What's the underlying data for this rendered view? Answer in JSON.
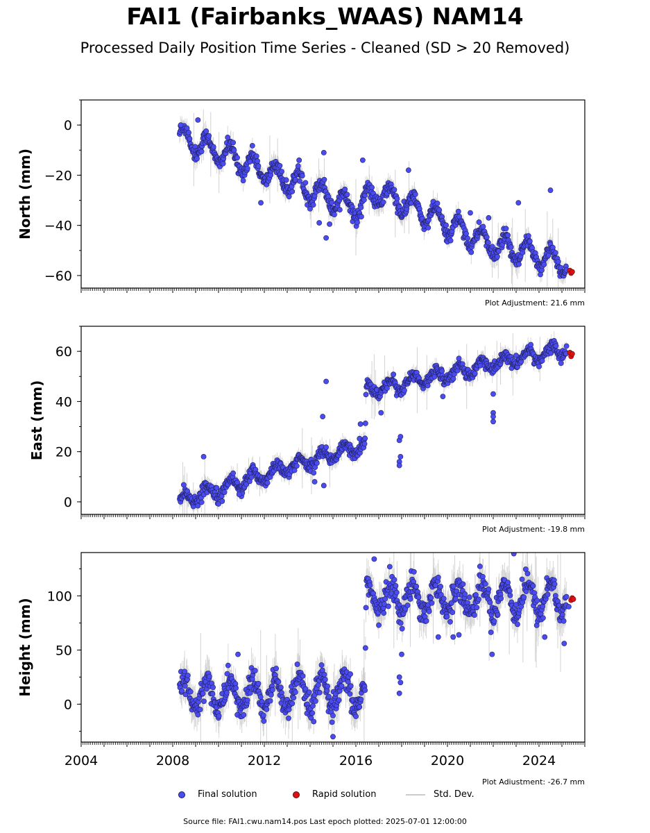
{
  "title": "FAI1 (Fairbanks_WAAS) NAM14",
  "subtitle": "Processed Daily Position Time Series - Cleaned (SD > 20 Removed)",
  "legend": {
    "final": "Final solution",
    "rapid": "Rapid solution",
    "std": "Std. Dev."
  },
  "source_note": "Source file: FAI1.cwu.nam14.pos  Last epoch plotted: 2025-07-01 12:00:00",
  "colors": {
    "final_fill": "#4b4bf2",
    "final_edge": "#20205a",
    "rapid_fill": "#e01010",
    "stddev": "#c8c8c8"
  },
  "chart_data": [
    {
      "type": "scatter",
      "ylabel": "North (mm)",
      "plot_adjustment": "Plot Adjustment: 21.6 mm",
      "xlim": [
        2004.0,
        2026.0
      ],
      "ylim": [
        -65,
        10
      ],
      "yticks": [
        0,
        -20,
        -40,
        -60
      ],
      "yticklabels": [
        "0",
        "−20",
        "−40",
        "−60"
      ],
      "show_xticklabels": false,
      "trend": [
        [
          2008.3,
          -4.5
        ],
        [
          2016.0,
          -33.0
        ],
        [
          2017.0,
          -27.0
        ],
        [
          2018.5,
          -33.0
        ],
        [
          2022.0,
          -48.0
        ],
        [
          2025.2,
          -55.0
        ]
      ],
      "seasonal_amplitude": 4.5,
      "noise": 1.4,
      "outliers": [
        [
          2008.35,
          0
        ],
        [
          2009.1,
          2
        ],
        [
          2011.85,
          -31
        ],
        [
          2013.8,
          -23
        ],
        [
          2014.6,
          -11
        ],
        [
          2014.7,
          -45
        ],
        [
          2014.4,
          -39
        ],
        [
          2014.85,
          -39.5
        ],
        [
          2016.3,
          -14
        ],
        [
          2018.3,
          -18
        ],
        [
          2021.0,
          -35
        ],
        [
          2021.8,
          -37
        ],
        [
          2023.1,
          -31
        ],
        [
          2024.5,
          -26
        ]
      ],
      "rapid": [
        [
          2025.35,
          -58
        ],
        [
          2025.4,
          -59
        ],
        [
          2025.45,
          -58.5
        ]
      ]
    },
    {
      "type": "scatter",
      "ylabel": "East (mm)",
      "plot_adjustment": "Plot Adjustment: -19.8 mm",
      "xlim": [
        2004.0,
        2026.0
      ],
      "ylim": [
        -5,
        70
      ],
      "yticks": [
        0,
        20,
        40,
        60
      ],
      "yticklabels": [
        "0",
        "20",
        "40",
        "60"
      ],
      "show_xticklabels": false,
      "trend": [
        [
          2008.3,
          0.5
        ],
        [
          2016.4,
          23.0
        ],
        [
          2016.45,
          44.0
        ],
        [
          2022.0,
          55.0
        ],
        [
          2025.2,
          61.0
        ]
      ],
      "seasonal_amplitude": 2.5,
      "noise": 1.2,
      "outliers": [
        [
          2009.35,
          18
        ],
        [
          2010.9,
          3
        ],
        [
          2014.2,
          8
        ],
        [
          2014.55,
          34
        ],
        [
          2014.7,
          48
        ],
        [
          2014.6,
          6.5
        ],
        [
          2016.2,
          31
        ],
        [
          2017.1,
          35.5
        ],
        [
          2017.9,
          24.5
        ],
        [
          2017.95,
          26
        ],
        [
          2017.9,
          16
        ],
        [
          2017.95,
          18
        ],
        [
          2017.9,
          14.5
        ],
        [
          2019.8,
          42
        ],
        [
          2022.0,
          43
        ],
        [
          2022.0,
          35.5
        ],
        [
          2022.0,
          32
        ],
        [
          2022.0,
          34
        ]
      ],
      "rapid": [
        [
          2025.35,
          59.5
        ],
        [
          2025.4,
          58
        ],
        [
          2025.45,
          59
        ]
      ]
    },
    {
      "type": "scatter",
      "ylabel": "Height (mm)",
      "plot_adjustment": "Plot Adjustment: -26.7 mm",
      "xlim": [
        2004.0,
        2026.0
      ],
      "ylim": [
        -35,
        140
      ],
      "yticks": [
        0,
        50,
        100
      ],
      "yticklabels": [
        "0",
        "50",
        "100"
      ],
      "xticks": [
        2004,
        2008,
        2012,
        2016,
        2020,
        2024
      ],
      "xticklabels": [
        "2004",
        "2008",
        "2012",
        "2016",
        "2020",
        "2024"
      ],
      "show_xticklabels": true,
      "trend": [
        [
          2008.3,
          8.0
        ],
        [
          2016.4,
          10.0
        ],
        [
          2016.45,
          98.0
        ],
        [
          2025.2,
          98.0
        ]
      ],
      "seasonal_amplitude": 14,
      "noise": 6,
      "outliers": [
        [
          2010.85,
          46
        ],
        [
          2015.0,
          -30
        ],
        [
          2016.8,
          134
        ],
        [
          2017.9,
          25
        ],
        [
          2017.95,
          20
        ],
        [
          2017.9,
          10
        ],
        [
          2018.0,
          46
        ],
        [
          2019.6,
          62
        ],
        [
          2020.25,
          62
        ],
        [
          2020.5,
          64
        ],
        [
          2021.95,
          46
        ],
        [
          2022.9,
          139
        ],
        [
          2024.25,
          62
        ],
        [
          2025.1,
          56
        ],
        [
          2025.3,
          90
        ]
      ],
      "rapid": [
        [
          2025.4,
          96
        ],
        [
          2025.45,
          98
        ],
        [
          2025.5,
          97
        ]
      ]
    }
  ]
}
